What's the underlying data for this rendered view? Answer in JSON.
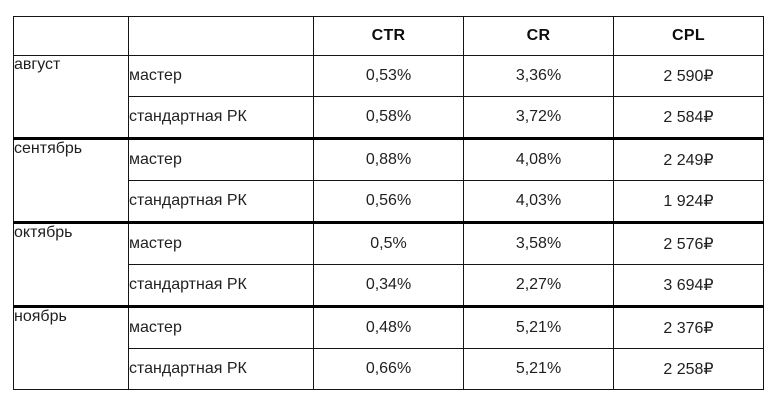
{
  "colors": {
    "background": "#ffffff",
    "text": "#1f1f1f",
    "header_text": "#0d0d0d",
    "border_thin": "#141414",
    "border_thick": "#000000"
  },
  "chart_data": {
    "type": "table",
    "title": "",
    "column_headers": [
      "CTR",
      "CR",
      "CPL"
    ],
    "corner_headers": [
      "",
      ""
    ],
    "row_label_fields": [
      "month",
      "campaign_type"
    ],
    "groups": [
      {
        "month": "август",
        "rows": [
          {
            "label": "мастер",
            "ctr": "0,53%",
            "cr": "3,36%",
            "cpl": "2 590₽"
          },
          {
            "label": "стандартная РК",
            "ctr": "0,58%",
            "cr": "3,72%",
            "cpl": "2 584₽"
          }
        ]
      },
      {
        "month": "сентябрь",
        "rows": [
          {
            "label": "мастер",
            "ctr": "0,88%",
            "cr": "4,08%",
            "cpl": "2 249₽"
          },
          {
            "label": "стандартная РК",
            "ctr": "0,56%",
            "cr": "4,03%",
            "cpl": "1 924₽"
          }
        ]
      },
      {
        "month": "октябрь",
        "rows": [
          {
            "label": "мастер",
            "ctr": "0,5%",
            "cr": "3,58%",
            "cpl": "2 576₽"
          },
          {
            "label": "стандартная РК",
            "ctr": "0,34%",
            "cr": "2,27%",
            "cpl": "3 694₽"
          }
        ]
      },
      {
        "month": "ноябрь",
        "rows": [
          {
            "label": "мастер",
            "ctr": "0,48%",
            "cr": "5,21%",
            "cpl": "2 376₽"
          },
          {
            "label": "стандартная РК",
            "ctr": "0,66%",
            "cr": "5,21%",
            "cpl": "2 258₽"
          }
        ]
      }
    ],
    "layout": {
      "value_alignment": "center",
      "group_separator": "thick",
      "grid": true
    }
  }
}
